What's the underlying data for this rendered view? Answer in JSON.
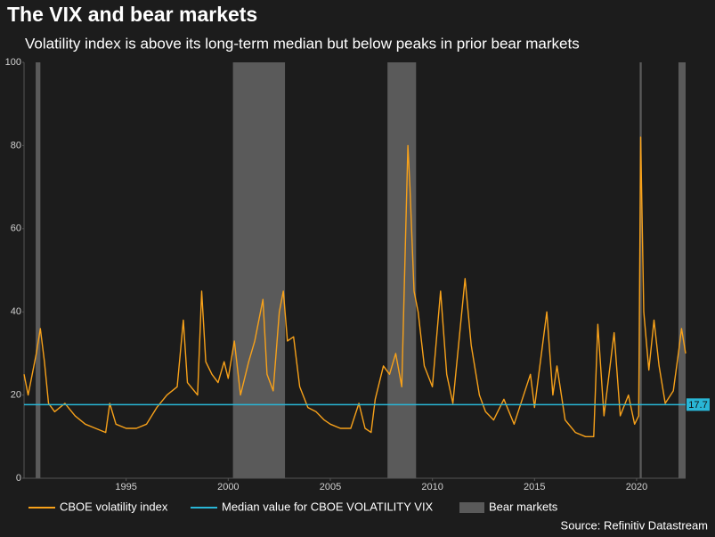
{
  "chart_data": {
    "type": "line",
    "title": "The VIX and bear markets",
    "subtitle": "Volatility index is above its long-term median but below peaks in prior bear markets",
    "source": "Source: Refinitiv Datastream",
    "x": [
      1990.0,
      1990.2,
      1990.6,
      1990.8,
      1991.0,
      1991.2,
      1991.5,
      1992.0,
      1992.5,
      1993.0,
      1993.5,
      1994.0,
      1994.2,
      1994.5,
      1995.0,
      1995.5,
      1996.0,
      1996.5,
      1997.0,
      1997.5,
      1997.8,
      1998.0,
      1998.5,
      1998.7,
      1998.9,
      1999.2,
      1999.5,
      1999.8,
      2000.0,
      2000.3,
      2000.6,
      2001.0,
      2001.3,
      2001.7,
      2001.9,
      2002.2,
      2002.5,
      2002.7,
      2002.9,
      2003.2,
      2003.5,
      2003.9,
      2004.3,
      2004.7,
      2005.0,
      2005.5,
      2006.0,
      2006.4,
      2006.7,
      2007.0,
      2007.2,
      2007.6,
      2007.9,
      2008.2,
      2008.5,
      2008.8,
      2008.9,
      2009.1,
      2009.3,
      2009.6,
      2010.0,
      2010.4,
      2010.7,
      2011.0,
      2011.6,
      2011.9,
      2012.3,
      2012.6,
      2013.0,
      2013.5,
      2014.0,
      2014.8,
      2015.0,
      2015.6,
      2015.9,
      2016.1,
      2016.5,
      2017.0,
      2017.5,
      2017.9,
      2018.1,
      2018.4,
      2018.9,
      2019.2,
      2019.6,
      2019.9,
      2020.1,
      2020.2,
      2020.35,
      2020.6,
      2020.85,
      2021.1,
      2021.4,
      2021.8,
      2022.1,
      2022.2,
      2022.4
    ],
    "series": [
      {
        "name": "CBOE volatility index",
        "color": "#f7a11a",
        "values": [
          25,
          20,
          30,
          36,
          28,
          18,
          16,
          18,
          15,
          13,
          12,
          11,
          18,
          13,
          12,
          12,
          13,
          17,
          20,
          22,
          38,
          23,
          20,
          45,
          28,
          25,
          23,
          28,
          24,
          33,
          20,
          28,
          33,
          43,
          25,
          21,
          40,
          45,
          33,
          34,
          22,
          17,
          16,
          14,
          13,
          12,
          12,
          18,
          12,
          11,
          19,
          27,
          25,
          30,
          22,
          80,
          70,
          45,
          40,
          27,
          22,
          45,
          25,
          18,
          48,
          32,
          20,
          16,
          14,
          19,
          13,
          25,
          17,
          40,
          20,
          27,
          14,
          11,
          10,
          10,
          37,
          15,
          35,
          15,
          20,
          13,
          15,
          82,
          40,
          26,
          38,
          27,
          18,
          21,
          32,
          36,
          30
        ]
      }
    ],
    "median": {
      "name": "Median value for CBOE VOLATILITY VIX",
      "color": "#29b6d6",
      "value": 17.7
    },
    "bear_markets": {
      "name": "Bear markets",
      "color": "#5a5a5a",
      "ranges": [
        [
          1990.57,
          1990.8
        ],
        [
          2000.23,
          2002.78
        ],
        [
          2007.8,
          2009.2
        ],
        [
          2020.15,
          2020.25
        ],
        [
          2022.05,
          2022.4
        ]
      ]
    },
    "xlim": [
      1990,
      2022.4
    ],
    "ylim": [
      0,
      100
    ],
    "xticks": [
      1995,
      2000,
      2005,
      2010,
      2015,
      2020
    ],
    "yticks": [
      0,
      20,
      40,
      60,
      80,
      100
    ]
  }
}
